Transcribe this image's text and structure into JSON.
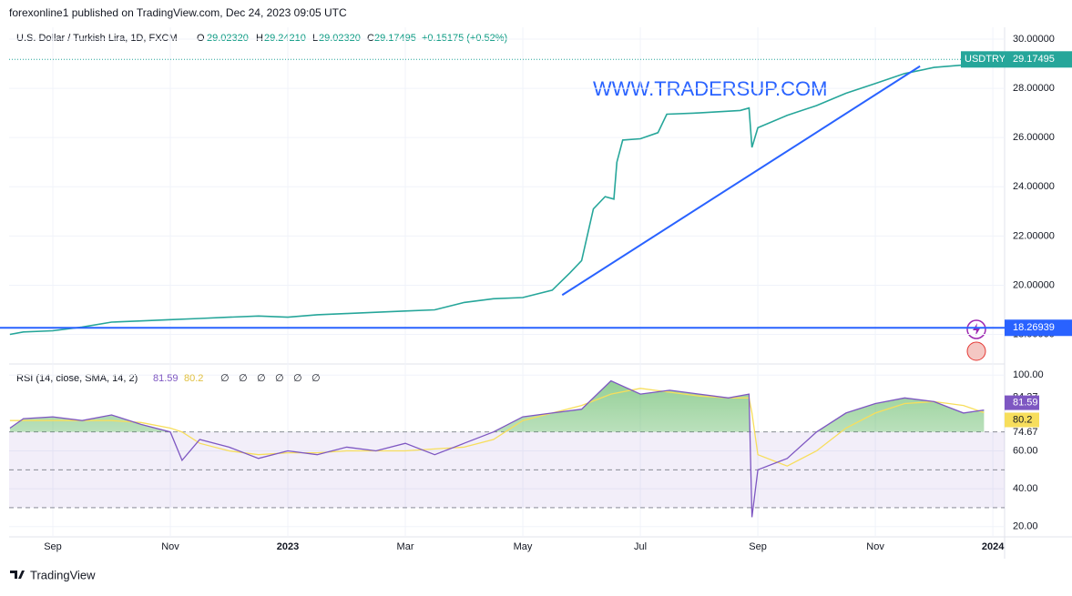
{
  "header": {
    "publisher": "forexonline1 published on TradingView.com, Dec 24, 2023 09:05 UTC",
    "symbol": "U.S. Dollar / Turkish Lira, 1D, FXCM",
    "o_label": "O",
    "o": "29.02320",
    "h_label": "H",
    "h": "29.24210",
    "l_label": "L",
    "l": "29.02320",
    "c_label": "C",
    "c": "29.17495",
    "change": "+0.15175 (+0.52%)"
  },
  "watermark": "WWW.TRADERSUP.COM",
  "footer": "TradingView",
  "chart_data": [
    {
      "type": "line",
      "xlim": [
        0.256,
        17.2
      ],
      "ylim": [
        16.8,
        30.48
      ],
      "yticks": [
        {
          "value": 30,
          "label": "30.00000"
        },
        {
          "value": 28,
          "label": "28.00000"
        },
        {
          "value": 26,
          "label": "26.00000"
        },
        {
          "value": 24,
          "label": "24.00000"
        },
        {
          "value": 22,
          "label": "22.00000"
        },
        {
          "value": 20,
          "label": "20.00000"
        },
        {
          "value": 18,
          "label": "18.00000"
        }
      ],
      "x": [
        0.27,
        0.5,
        1,
        1.5,
        2,
        2.5,
        3,
        3.5,
        4,
        4.5,
        5,
        5.5,
        6,
        6.5,
        7,
        7.5,
        8,
        8.5,
        9,
        9.5,
        9.8,
        10,
        10.2,
        10.4,
        10.55,
        10.6,
        10.7,
        11,
        11.3,
        11.45,
        12,
        12.7,
        12.85,
        12.9,
        13,
        13.5,
        14,
        14.5,
        15,
        15.5,
        16,
        16.5,
        16.85
      ],
      "series": [
        {
          "name": "USDTRY",
          "color": "#26a69a",
          "values": [
            18.0,
            18.1,
            18.15,
            18.3,
            18.5,
            18.55,
            18.6,
            18.65,
            18.7,
            18.75,
            18.7,
            18.8,
            18.85,
            18.9,
            18.95,
            19.0,
            19.3,
            19.45,
            19.5,
            19.8,
            20.5,
            21.0,
            23.1,
            23.6,
            23.5,
            25.0,
            25.9,
            25.95,
            26.2,
            26.95,
            27.0,
            27.1,
            27.2,
            25.6,
            26.4,
            26.9,
            27.3,
            27.8,
            28.2,
            28.6,
            28.85,
            28.95,
            29.17495
          ]
        }
      ],
      "last_price": {
        "symbol": "USDTRY",
        "value": 29.17495
      },
      "hline": 18.26939,
      "trendline": {
        "x": [
          9.67,
          15.76
        ],
        "values": [
          19.6,
          28.9
        ]
      }
    },
    {
      "type": "line",
      "title": "RSI (14, close, SMA, 14, 2)",
      "xlim": [
        0.256,
        17.2
      ],
      "ylim": [
        14.6,
        105.9
      ],
      "yticks": [
        {
          "value": 100,
          "label": "100.00"
        },
        {
          "value": 60,
          "label": "60.00"
        },
        {
          "value": 40,
          "label": "40.00"
        },
        {
          "value": 20,
          "label": "20.00"
        }
      ],
      "axis_marks": [
        84.37,
        74.67
      ],
      "bands": [
        70,
        50,
        30
      ],
      "xticks": [
        {
          "value": 1,
          "label": "Sep"
        },
        {
          "value": 3,
          "label": "Nov"
        },
        {
          "value": 5,
          "label": "2023"
        },
        {
          "value": 7,
          "label": "Mar"
        },
        {
          "value": 9,
          "label": "May"
        },
        {
          "value": 11,
          "label": "Jul"
        },
        {
          "value": 13,
          "label": "Sep"
        },
        {
          "value": 15,
          "label": "Nov"
        },
        {
          "value": 17,
          "label": "2024"
        }
      ],
      "x": [
        0.27,
        0.5,
        1,
        1.5,
        2,
        2.5,
        3,
        3.2,
        3.5,
        4,
        4.5,
        5,
        5.5,
        6,
        6.5,
        7,
        7.5,
        8,
        8.5,
        9,
        9.5,
        10,
        10.5,
        11,
        11.5,
        12,
        12.5,
        12.85,
        12.9,
        13,
        13.5,
        14,
        14.5,
        15,
        15.5,
        16,
        16.5,
        16.85
      ],
      "series": [
        {
          "name": "RSI",
          "color": "#7e57c2",
          "values": [
            72,
            77,
            78,
            76,
            79,
            74,
            70,
            55,
            66,
            62,
            56,
            60,
            58,
            62,
            60,
            64,
            58,
            64,
            70,
            78,
            80,
            82,
            97,
            90,
            92,
            90,
            88,
            90,
            25,
            50,
            56,
            70,
            80,
            85,
            88,
            86,
            80,
            81.59
          ]
        },
        {
          "name": "SMA",
          "color": "#f7de5c",
          "values": [
            76,
            76,
            76,
            76,
            76,
            75,
            72,
            70,
            64,
            60,
            58,
            59,
            59,
            60,
            60,
            60,
            61,
            62,
            66,
            76,
            80,
            84,
            90,
            93,
            91,
            89,
            88,
            88,
            80,
            58,
            52,
            60,
            72,
            80,
            85,
            86,
            84,
            80.2
          ]
        }
      ],
      "na_values": [
        "∅",
        "∅",
        "∅",
        "∅",
        "∅",
        "∅"
      ]
    }
  ]
}
